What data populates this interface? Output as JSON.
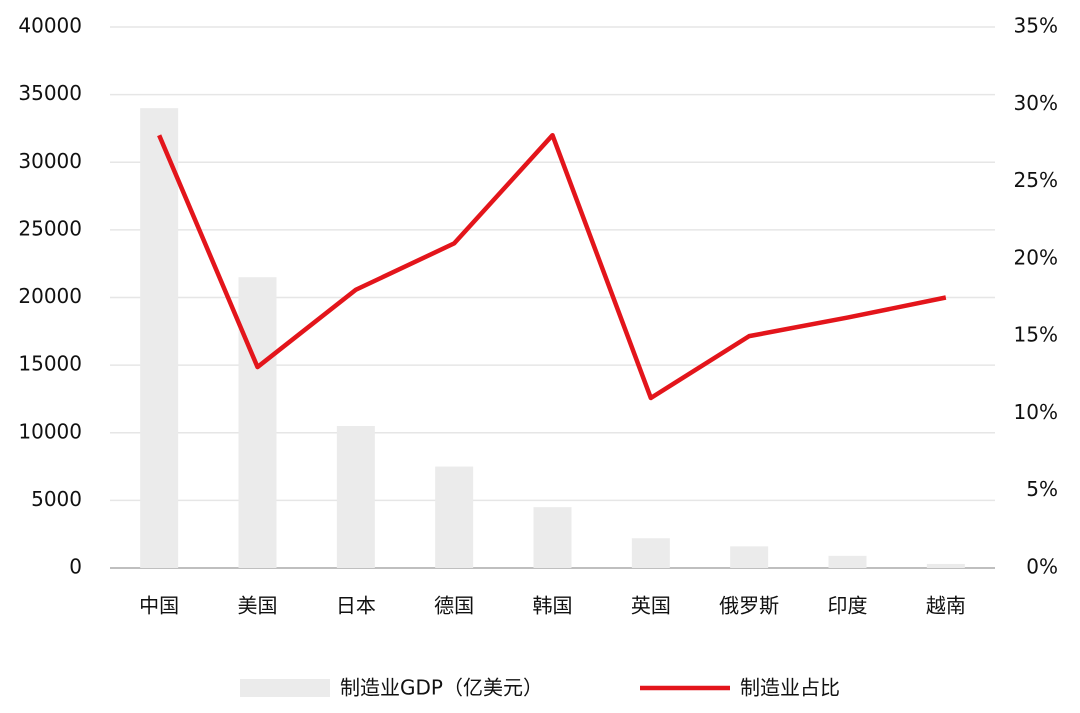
{
  "chart_data": {
    "type": "bar",
    "categories": [
      "中国",
      "美国",
      "日本",
      "德国",
      "韩国",
      "英国",
      "俄罗斯",
      "印度",
      "越南"
    ],
    "series": [
      {
        "name": "制造业GDP（亿美元）",
        "type": "bar",
        "color": "#ebebeb",
        "values": [
          34000,
          21500,
          10500,
          7500,
          4500,
          2200,
          1600,
          900,
          300
        ]
      },
      {
        "name": "制造业占比",
        "type": "line",
        "axis": "y2",
        "color": "#e3151b",
        "values": [
          28,
          13,
          18,
          21,
          28,
          11,
          15,
          16.2,
          17.5
        ]
      }
    ],
    "ylim": [
      0,
      40000
    ],
    "yticks": [
      0,
      5000,
      10000,
      15000,
      20000,
      25000,
      30000,
      35000,
      40000
    ],
    "y2lim": [
      0,
      35
    ],
    "y2ticks": [
      {
        "value": 0,
        "label": "0%"
      },
      {
        "value": 5,
        "label": "5%"
      },
      {
        "value": 10,
        "label": "10%"
      },
      {
        "value": 15,
        "label": "15%"
      },
      {
        "value": 20,
        "label": "20%"
      },
      {
        "value": 25,
        "label": "25%"
      },
      {
        "value": 30,
        "label": "30%"
      },
      {
        "value": 35,
        "label": "35%"
      }
    ],
    "grid": true,
    "legend": "bottom"
  }
}
